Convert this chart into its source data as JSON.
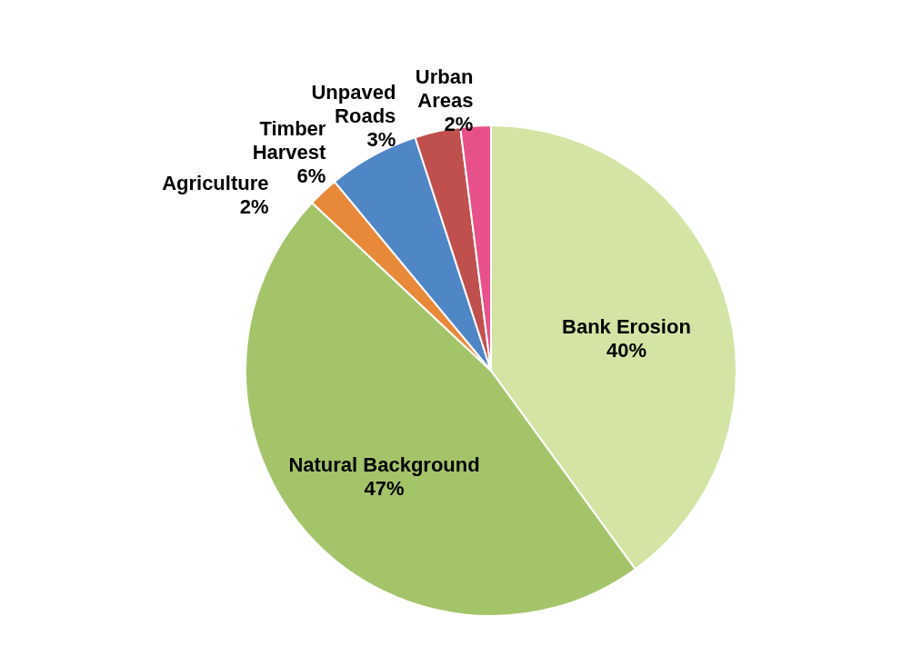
{
  "chart_data": {
    "type": "pie",
    "categories": [
      "Bank Erosion",
      "Natural Background",
      "Agriculture",
      "Timber Harvest",
      "Unpaved Roads",
      "Urban Areas"
    ],
    "values": [
      40,
      47,
      2,
      6,
      3,
      2
    ],
    "value_labels": [
      "40%",
      "47%",
      "2%",
      "6%",
      "3%",
      "2%"
    ],
    "colors": [
      "#d3e4a5",
      "#a4c46a",
      "#e8893a",
      "#4f86c6",
      "#c0504d",
      "#e8508a"
    ]
  }
}
